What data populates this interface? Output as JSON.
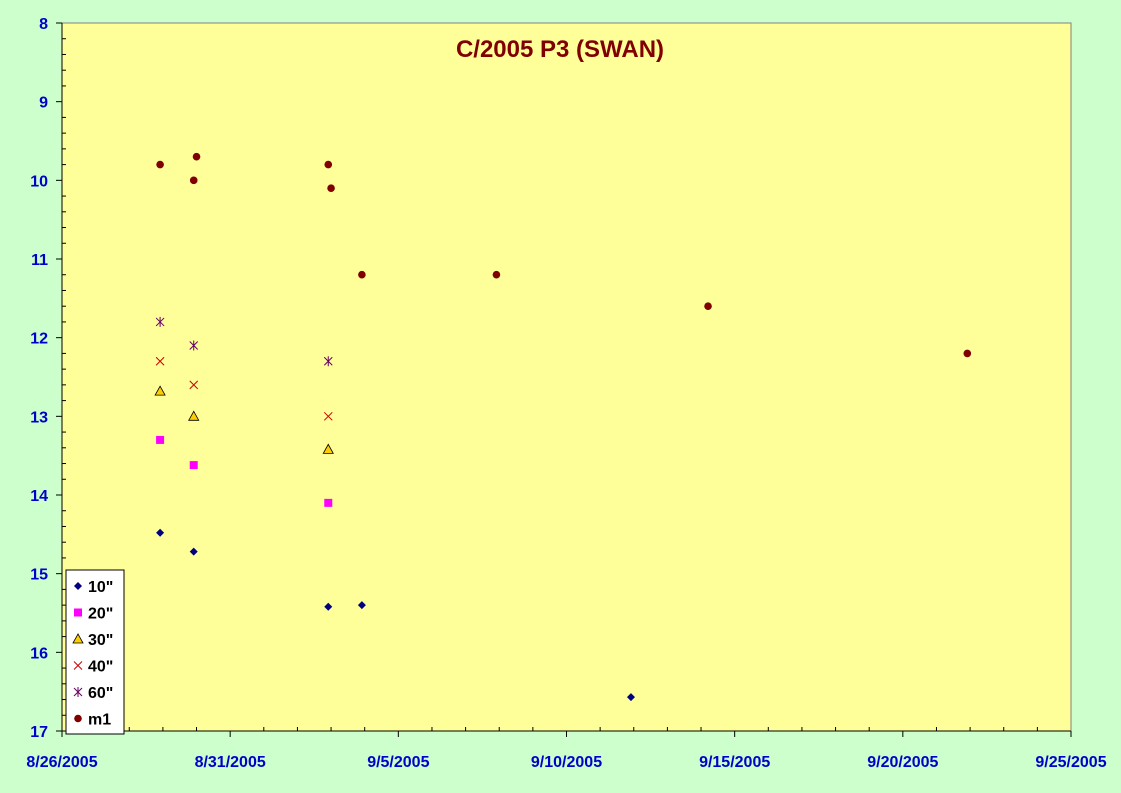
{
  "chart_data": {
    "type": "scatter",
    "title": "C/2005 P3 (SWAN)",
    "xlabel": "",
    "ylabel": "",
    "x_tick_labels": [
      "8/26/2005",
      "8/31/2005",
      "9/5/2005",
      "9/10/2005",
      "9/15/2005",
      "9/20/2005",
      "9/25/2005"
    ],
    "y_tick_labels": [
      "8",
      "9",
      "10",
      "11",
      "12",
      "13",
      "14",
      "15",
      "16",
      "17"
    ],
    "xlim": [
      "2005-08-26",
      "2005-09-25"
    ],
    "ylim": [
      17,
      8
    ],
    "y_reversed": true,
    "grid": false,
    "legend_position": "bottom-left",
    "colors": {
      "plot_bg": "#ffff99",
      "page_bg": "#ccffcc",
      "axis_text": "#0000cc",
      "title": "#800000"
    },
    "series": [
      {
        "name": "10\"",
        "marker": "diamond",
        "color": "#000080",
        "points": [
          {
            "x": "2005-08-28T22:00",
            "y": 14.48
          },
          {
            "x": "2005-08-29T22:00",
            "y": 14.72
          },
          {
            "x": "2005-09-02T22:00",
            "y": 15.42
          },
          {
            "x": "2005-09-03T22:00",
            "y": 15.4
          },
          {
            "x": "2005-09-11T22:00",
            "y": 16.57
          }
        ]
      },
      {
        "name": "20\"",
        "marker": "square",
        "color": "#ff00ff",
        "points": [
          {
            "x": "2005-08-28T22:00",
            "y": 13.3
          },
          {
            "x": "2005-08-29T22:00",
            "y": 13.62
          },
          {
            "x": "2005-09-02T22:00",
            "y": 14.1
          }
        ]
      },
      {
        "name": "30\"",
        "marker": "triangle",
        "color": "#ffcc00",
        "points": [
          {
            "x": "2005-08-28T22:00",
            "y": 12.68
          },
          {
            "x": "2005-08-29T22:00",
            "y": 13.0
          },
          {
            "x": "2005-09-02T22:00",
            "y": 13.42
          }
        ]
      },
      {
        "name": "40\"",
        "marker": "x",
        "color": "#cc0000",
        "points": [
          {
            "x": "2005-08-28T22:00",
            "y": 12.3
          },
          {
            "x": "2005-08-29T22:00",
            "y": 12.6
          },
          {
            "x": "2005-09-02T22:00",
            "y": 13.0
          }
        ]
      },
      {
        "name": "60\"",
        "marker": "star",
        "color": "#660066",
        "points": [
          {
            "x": "2005-08-28T22:00",
            "y": 11.8
          },
          {
            "x": "2005-08-29T22:00",
            "y": 12.1
          },
          {
            "x": "2005-09-02T22:00",
            "y": 12.3
          }
        ]
      },
      {
        "name": "m1",
        "marker": "circle",
        "color": "#800000",
        "points": [
          {
            "x": "2005-08-28T22:00",
            "y": 9.8
          },
          {
            "x": "2005-08-30T00:00",
            "y": 9.7
          },
          {
            "x": "2005-08-29T22:00",
            "y": 10.0
          },
          {
            "x": "2005-09-02T22:00",
            "y": 9.8
          },
          {
            "x": "2005-09-03T00:00",
            "y": 10.1
          },
          {
            "x": "2005-09-03T22:00",
            "y": 11.2
          },
          {
            "x": "2005-09-07T22:00",
            "y": 11.2
          },
          {
            "x": "2005-09-14T05:00",
            "y": 11.6
          },
          {
            "x": "2005-09-21T22:00",
            "y": 12.2
          }
        ]
      }
    ]
  }
}
